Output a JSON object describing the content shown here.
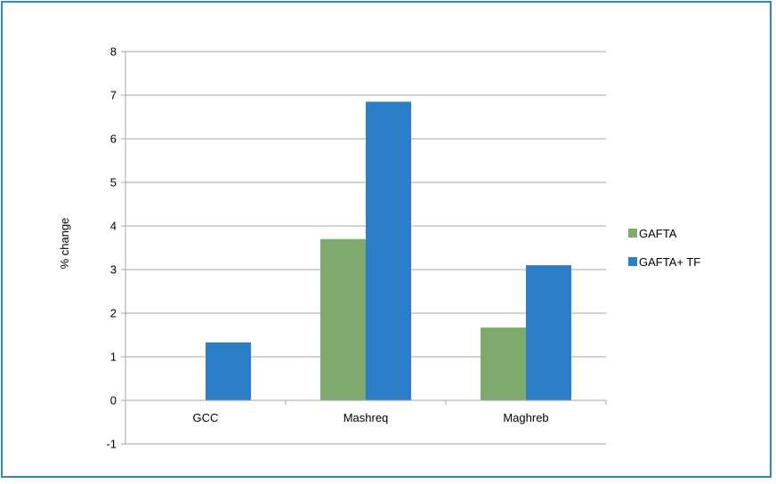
{
  "chart_data": {
    "type": "bar",
    "title": "",
    "xlabel": "",
    "ylabel": "% change",
    "ylim": [
      -1,
      8
    ],
    "yticks": [
      -1,
      0,
      1,
      2,
      3,
      4,
      5,
      6,
      7,
      8
    ],
    "categories": [
      "GCC",
      "Mashreq",
      "Maghreb"
    ],
    "series": [
      {
        "name": "GAFTA",
        "values": [
          0,
          3.7,
          1.67
        ],
        "color": "#7faa6e"
      },
      {
        "name": "GAFTA+ TF",
        "values": [
          1.33,
          6.85,
          3.1
        ],
        "color": "#2c7fc7"
      }
    ],
    "grid": true,
    "legend": "right",
    "frame_color": "#2f88c8"
  }
}
